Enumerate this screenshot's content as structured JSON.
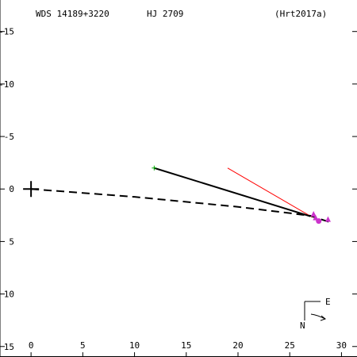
{
  "header": {
    "wds_id": "WDS 14189+3220",
    "discoverer": "HJ 2709",
    "orbit_ref": "(Hrt2017a)"
  },
  "compass": {
    "north_label": "N",
    "east_label": "E"
  },
  "chart_data": {
    "type": "scatter",
    "title": "",
    "xlabel": "",
    "ylabel": "",
    "xlim": [
      -3,
      31.5
    ],
    "ylim": [
      -18,
      16
    ],
    "y_inverted": true,
    "grid": false,
    "x_ticks": [
      0,
      5,
      10,
      15,
      20,
      25,
      30
    ],
    "y_ticks": [
      15,
      10,
      5,
      0,
      -5,
      -10,
      -15
    ],
    "x_tick_labels": [
      "0",
      "5",
      "10",
      "15",
      "20",
      "25",
      "30"
    ],
    "y_tick_labels": [
      "15",
      "10",
      "5",
      "0",
      "-5",
      "-10",
      "-15"
    ],
    "primary": {
      "x": 0,
      "y": 0
    },
    "first_observation": {
      "x": 11.9,
      "y": -2.0
    },
    "orbit_arc": [
      {
        "x": 0.0,
        "y": 0.0
      },
      {
        "x": 10.0,
        "y": 0.75
      },
      {
        "x": 20.0,
        "y": 1.7
      },
      {
        "x": 25.0,
        "y": 2.3
      },
      {
        "x": 27.0,
        "y": 2.55
      },
      {
        "x": 29.0,
        "y": 3.2
      }
    ],
    "motion_line": {
      "from": {
        "x": 11.9,
        "y": -2.0
      },
      "to": {
        "x": 27.0,
        "y": 2.6
      }
    },
    "red_line": {
      "from": {
        "x": 19.0,
        "y": -2.0
      },
      "to": {
        "x": 27.2,
        "y": 2.7
      }
    },
    "measurements": [
      {
        "x": 27.3,
        "y": 2.4
      },
      {
        "x": 27.5,
        "y": 2.75
      },
      {
        "x": 27.8,
        "y": 3.05
      },
      {
        "x": 28.7,
        "y": 2.9
      }
    ],
    "colors": {
      "axes": "#000000",
      "orbit": "#000000",
      "motion_line": "#000000",
      "red_line": "#ff0000",
      "measurements": "#cc33cc",
      "first_observation": "#00aa00"
    }
  }
}
